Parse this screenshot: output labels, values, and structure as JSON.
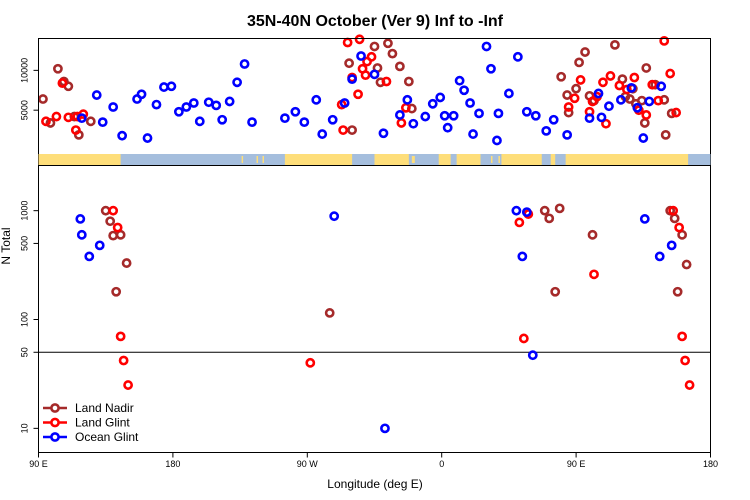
{
  "chart_data": {
    "type": "scatter",
    "title": "35N-40N October (Ver 9)   Inf to -Inf",
    "xlabel": "Longitude (deg E)",
    "ylabel": "N Total",
    "x_ticks": [
      {
        "value": 90,
        "label": "90 E"
      },
      {
        "value": 180,
        "label": "180"
      },
      {
        "value": 270,
        "label": "90 W"
      },
      {
        "value": 360,
        "label": "0"
      },
      {
        "value": 450,
        "label": "90 E"
      },
      {
        "value": 540,
        "label": "180"
      }
    ],
    "xlim": [
      90,
      540
    ],
    "top_panel": {
      "ylim": [
        0,
        14000
      ],
      "yticks": [
        {
          "value": 5000,
          "label": "5000"
        },
        {
          "value": 10000,
          "label": "10000"
        }
      ]
    },
    "bottom_panel": {
      "scale": "log",
      "ylim": [
        6,
        2600
      ],
      "yticks": [
        {
          "value": 10,
          "label": "10"
        },
        {
          "value": 50,
          "label": "50"
        },
        {
          "value": 100,
          "label": "100"
        },
        {
          "value": 500,
          "label": "500"
        },
        {
          "value": 1000,
          "label": "1000"
        }
      ],
      "reference_line": 50
    },
    "land_strip": {
      "ocean_color": "#a5bedd",
      "land_color": "#fede7a"
    },
    "series": [
      {
        "name": "Land Nadir",
        "color": "#a52a2a",
        "top": [
          [
            93,
            6400
          ],
          [
            98,
            3400
          ],
          [
            103,
            10200
          ],
          [
            107,
            8600
          ],
          [
            110,
            8000
          ],
          [
            114,
            4200
          ],
          [
            117,
            1900
          ],
          [
            125,
            3600
          ],
          [
            298,
            10900
          ],
          [
            300,
            2500
          ],
          [
            315,
            13000
          ],
          [
            317,
            10300
          ],
          [
            319,
            8500
          ],
          [
            324,
            13400
          ],
          [
            327,
            12100
          ],
          [
            332,
            10500
          ],
          [
            338,
            8600
          ],
          [
            340,
            5200
          ],
          [
            440,
            9200
          ],
          [
            444,
            6900
          ],
          [
            445,
            4700
          ],
          [
            450,
            7700
          ],
          [
            452,
            11000
          ],
          [
            456,
            12300
          ],
          [
            459,
            6800
          ],
          [
            462,
            6200
          ],
          [
            476,
            13200
          ],
          [
            481,
            8900
          ],
          [
            483,
            6700
          ],
          [
            486,
            6400
          ],
          [
            488,
            7700
          ],
          [
            490,
            5800
          ],
          [
            494,
            6200
          ],
          [
            496,
            3400
          ],
          [
            497,
            10300
          ],
          [
            503,
            8200
          ],
          [
            509,
            6300
          ],
          [
            510,
            1900
          ],
          [
            514,
            4600
          ]
        ],
        "bottom": [
          [
            135,
            1000
          ],
          [
            138,
            800
          ],
          [
            140,
            590
          ],
          [
            142,
            180
          ],
          [
            145,
            600
          ],
          [
            149,
            330
          ],
          [
            285,
            115
          ],
          [
            429,
            1000
          ],
          [
            432,
            850
          ],
          [
            436,
            180
          ],
          [
            439,
            1050
          ],
          [
            461,
            600
          ],
          [
            513,
            1000
          ],
          [
            516,
            850
          ],
          [
            518,
            180
          ],
          [
            521,
            600
          ],
          [
            524,
            320
          ]
        ]
      },
      {
        "name": "Land Glint",
        "color": "#ff0000",
        "top": [
          [
            95,
            3600
          ],
          [
            102,
            4200
          ],
          [
            106,
            8400
          ],
          [
            110,
            4100
          ],
          [
            115,
            2500
          ],
          [
            116,
            4200
          ],
          [
            120,
            4500
          ],
          [
            293,
            5700
          ],
          [
            294,
            2500
          ],
          [
            297,
            13500
          ],
          [
            300,
            9100
          ],
          [
            304,
            7000
          ],
          [
            305,
            13900
          ],
          [
            307,
            10200
          ],
          [
            309,
            9400
          ],
          [
            310,
            11100
          ],
          [
            313,
            11700
          ],
          [
            323,
            8600
          ],
          [
            333,
            3400
          ],
          [
            336,
            5300
          ],
          [
            445,
            5400
          ],
          [
            449,
            6500
          ],
          [
            453,
            8800
          ],
          [
            459,
            4800
          ],
          [
            461,
            6100
          ],
          [
            464,
            6700
          ],
          [
            468,
            8500
          ],
          [
            470,
            3300
          ],
          [
            473,
            9300
          ],
          [
            479,
            8100
          ],
          [
            484,
            7600
          ],
          [
            489,
            9100
          ],
          [
            492,
            5000
          ],
          [
            497,
            4400
          ],
          [
            501,
            8200
          ],
          [
            505,
            6200
          ],
          [
            509,
            13700
          ],
          [
            513,
            9600
          ],
          [
            517,
            4700
          ]
        ],
        "bottom": [
          [
            140,
            1000
          ],
          [
            143,
            700
          ],
          [
            145,
            70
          ],
          [
            147,
            42
          ],
          [
            150,
            25
          ],
          [
            272,
            40
          ],
          [
            412,
            780
          ],
          [
            415,
            67
          ],
          [
            418,
            930
          ],
          [
            462,
            260
          ],
          [
            515,
            1000
          ],
          [
            519,
            700
          ],
          [
            521,
            70
          ],
          [
            523,
            42
          ],
          [
            526,
            25
          ]
        ]
      },
      {
        "name": "Ocean Glint",
        "color": "#0000ff",
        "top": [
          [
            119,
            4000
          ],
          [
            129,
            6900
          ],
          [
            133,
            3500
          ],
          [
            140,
            5400
          ],
          [
            146,
            1800
          ],
          [
            156,
            6400
          ],
          [
            159,
            7000
          ],
          [
            163,
            1500
          ],
          [
            169,
            5700
          ],
          [
            174,
            7900
          ],
          [
            179,
            8000
          ],
          [
            184,
            4800
          ],
          [
            189,
            5400
          ],
          [
            194,
            5900
          ],
          [
            198,
            3600
          ],
          [
            204,
            6000
          ],
          [
            209,
            5600
          ],
          [
            213,
            3800
          ],
          [
            218,
            6100
          ],
          [
            223,
            8500
          ],
          [
            228,
            10800
          ],
          [
            233,
            3500
          ],
          [
            255,
            4000
          ],
          [
            262,
            4800
          ],
          [
            268,
            3500
          ],
          [
            276,
            6300
          ],
          [
            280,
            2000
          ],
          [
            287,
            3800
          ],
          [
            295,
            5900
          ],
          [
            300,
            8900
          ],
          [
            306,
            11800
          ],
          [
            315,
            9500
          ],
          [
            321,
            2100
          ],
          [
            332,
            4400
          ],
          [
            337,
            6300
          ],
          [
            341,
            3300
          ],
          [
            349,
            4200
          ],
          [
            354,
            5800
          ],
          [
            359,
            6600
          ],
          [
            362,
            4300
          ],
          [
            364,
            2800
          ],
          [
            368,
            4300
          ],
          [
            372,
            8700
          ],
          [
            375,
            7500
          ],
          [
            379,
            5900
          ],
          [
            381,
            2000
          ],
          [
            385,
            4600
          ],
          [
            390,
            13000
          ],
          [
            393,
            10200
          ],
          [
            397,
            1200
          ],
          [
            398,
            4600
          ],
          [
            405,
            7100
          ],
          [
            411,
            11700
          ],
          [
            417,
            4800
          ],
          [
            423,
            4300
          ],
          [
            430,
            2400
          ],
          [
            435,
            3800
          ],
          [
            444,
            1900
          ],
          [
            459,
            4000
          ],
          [
            465,
            7100
          ],
          [
            467,
            4100
          ],
          [
            472,
            5500
          ],
          [
            480,
            6300
          ],
          [
            487,
            7800
          ],
          [
            491,
            5300
          ],
          [
            495,
            1500
          ],
          [
            499,
            6100
          ],
          [
            507,
            8000
          ]
        ],
        "bottom": [
          [
            118,
            840
          ],
          [
            119,
            600
          ],
          [
            124,
            380
          ],
          [
            131,
            480
          ],
          [
            288,
            890
          ],
          [
            322,
            10
          ],
          [
            410,
            1000
          ],
          [
            414,
            380
          ],
          [
            417,
            970
          ],
          [
            421,
            47
          ],
          [
            496,
            840
          ],
          [
            506,
            380
          ],
          [
            514,
            480
          ]
        ]
      }
    ]
  }
}
